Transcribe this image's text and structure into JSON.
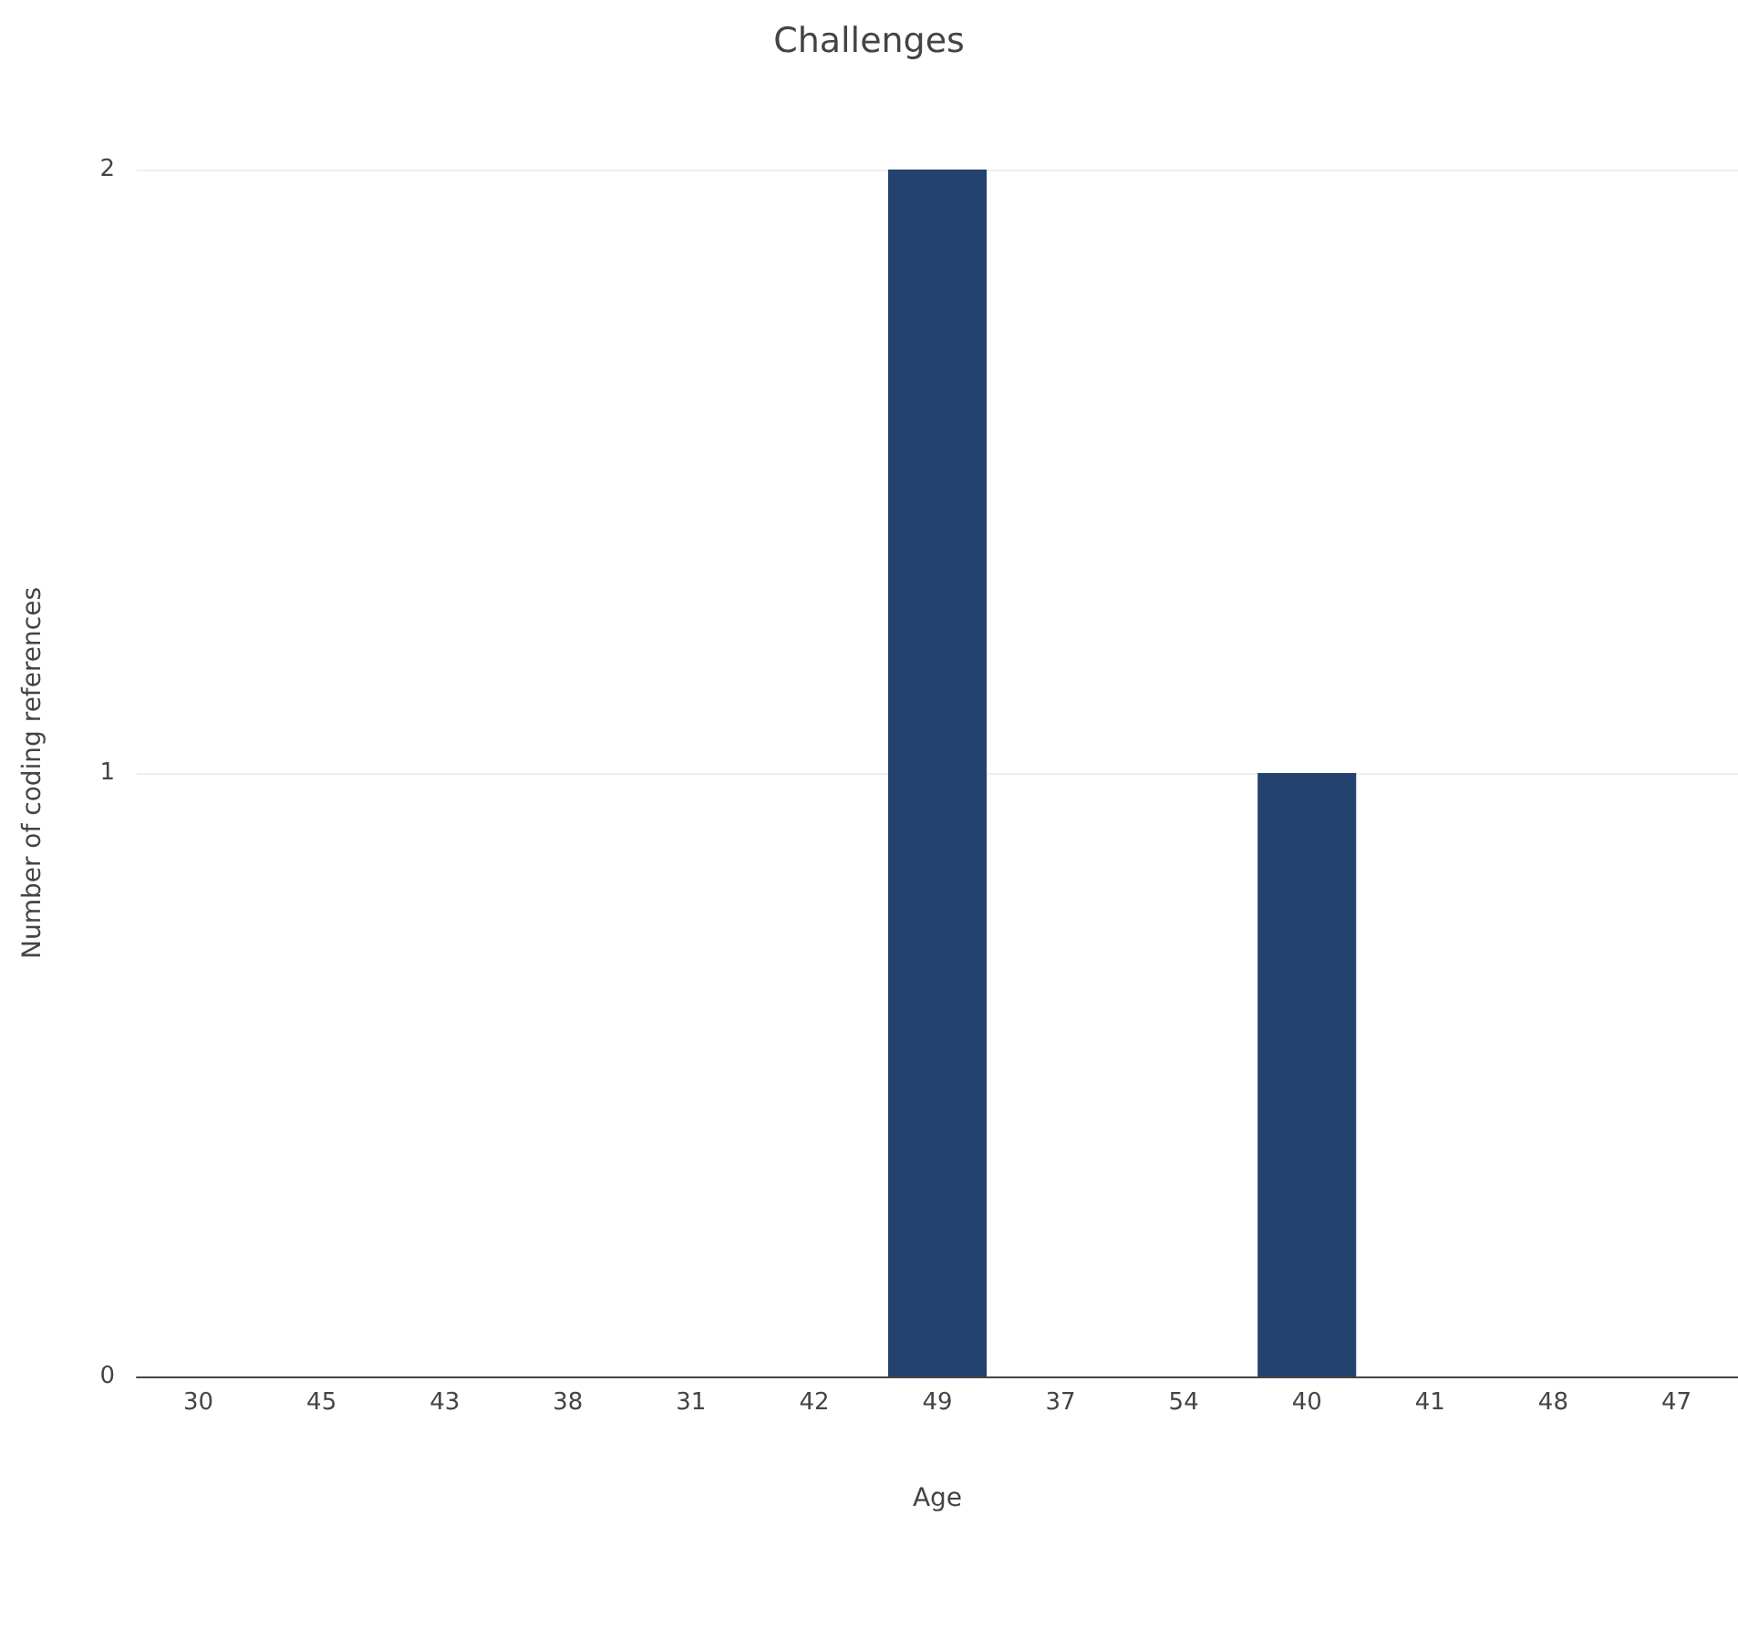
{
  "chart_data": {
    "type": "bar",
    "title": "Challenges",
    "xlabel": "Age",
    "ylabel": "Number of coding references",
    "categories": [
      "30",
      "45",
      "43",
      "38",
      "31",
      "42",
      "49",
      "37",
      "54",
      "40",
      "41",
      "48",
      "47"
    ],
    "values": [
      0,
      0,
      0,
      0,
      0,
      0,
      2,
      0,
      0,
      1,
      0,
      0,
      0
    ],
    "color": "#23426f",
    "ylim": [
      0,
      2
    ],
    "yticks": [
      0,
      1,
      2
    ],
    "grid": "y"
  }
}
